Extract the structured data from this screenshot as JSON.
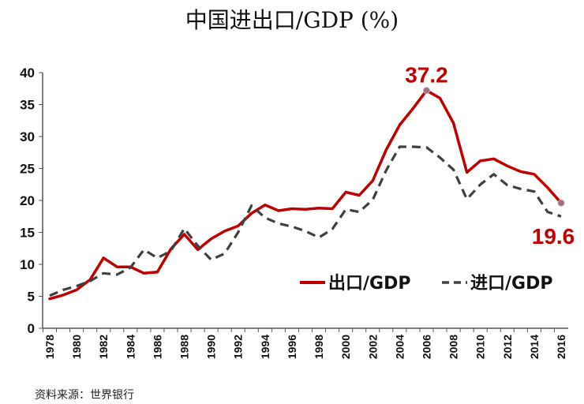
{
  "chart_data": {
    "type": "line",
    "title": "中国进出口/GDP (%)",
    "ylim": [
      0,
      40
    ],
    "yticks": [
      0,
      5,
      10,
      15,
      20,
      25,
      30,
      35,
      40
    ],
    "xlim": [
      1978,
      2016
    ],
    "xtick_labels": [
      "1978",
      "1980",
      "1982",
      "1984",
      "1986",
      "1988",
      "1990",
      "1992",
      "1994",
      "1996",
      "1998",
      "2000",
      "2002",
      "2004",
      "2006",
      "2008",
      "2010",
      "2012",
      "2014",
      "2016"
    ],
    "grid": false,
    "legend_position": "middle-right",
    "series": [
      {
        "name": "出口/GDP",
        "color": "#c00000",
        "style": "solid",
        "x": [
          1978,
          1979,
          1980,
          1981,
          1982,
          1983,
          1984,
          1985,
          1986,
          1987,
          1988,
          1989,
          1990,
          1991,
          1992,
          1993,
          1994,
          1995,
          1996,
          1997,
          1998,
          1999,
          2000,
          2001,
          2002,
          2003,
          2004,
          2005,
          2006,
          2007,
          2008,
          2009,
          2010,
          2011,
          2012,
          2013,
          2014,
          2015,
          2016
        ],
        "values": [
          4.6,
          5.2,
          6.0,
          7.6,
          11.0,
          9.6,
          9.6,
          8.6,
          8.8,
          12.4,
          14.7,
          12.3,
          14.0,
          15.2,
          16.0,
          18.0,
          19.3,
          18.4,
          18.7,
          18.6,
          18.8,
          18.7,
          21.3,
          20.8,
          23.1,
          27.9,
          31.8,
          34.4,
          37.2,
          36.0,
          32.1,
          24.4,
          26.2,
          26.5,
          25.4,
          24.5,
          24.1,
          22.0,
          19.6
        ]
      },
      {
        "name": "进口/GDP",
        "color": "#404040",
        "style": "dashed",
        "x": [
          1978,
          1979,
          1980,
          1981,
          1982,
          1983,
          1984,
          1985,
          1986,
          1987,
          1988,
          1989,
          1990,
          1991,
          1992,
          1993,
          1994,
          1995,
          1996,
          1997,
          1998,
          1999,
          2000,
          2001,
          2002,
          2003,
          2004,
          2005,
          2006,
          2007,
          2008,
          2009,
          2010,
          2011,
          2012,
          2013,
          2014,
          2015,
          2016
        ],
        "values": [
          5.1,
          6.0,
          6.6,
          7.4,
          8.6,
          8.4,
          9.5,
          12.3,
          11.0,
          12.1,
          15.6,
          12.9,
          10.7,
          11.7,
          15.0,
          19.2,
          17.3,
          16.4,
          15.9,
          15.2,
          14.2,
          15.5,
          18.6,
          18.2,
          20.1,
          24.7,
          28.4,
          28.4,
          28.3,
          26.7,
          24.8,
          20.2,
          22.5,
          24.1,
          22.4,
          21.8,
          21.4,
          18.2,
          17.5
        ]
      }
    ],
    "annotations": [
      {
        "label": "37.2",
        "x": 2006,
        "y": 37.2,
        "series": 0
      },
      {
        "label": "19.6",
        "x": 2016,
        "y": 19.6,
        "series": 0
      }
    ]
  },
  "footer": {
    "source": "资料来源：世界银行"
  }
}
